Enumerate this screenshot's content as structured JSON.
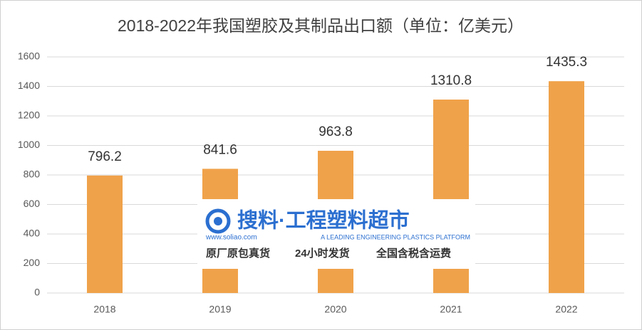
{
  "chart_data": {
    "type": "bar",
    "title": "2018-2022年我国塑胶及其制品出口额（单位：亿美元）",
    "categories": [
      "2018",
      "2019",
      "2020",
      "2021",
      "2022"
    ],
    "values": [
      796.2,
      841.6,
      963.8,
      1310.8,
      1435.3
    ],
    "color": "#f0a24a",
    "ylim": [
      0,
      1600
    ],
    "yticks": [
      0,
      200,
      400,
      600,
      800,
      1000,
      1200,
      1400,
      1600
    ],
    "grid": true
  },
  "watermark": {
    "brand": "搜料·工程塑料超市",
    "url": "www.soliao.com",
    "slogan": "A LEADING ENGINEERING PLASTICS PLATFORM",
    "taglines": [
      "原厂原包真货",
      "24小时发货",
      "全国含税含运费"
    ]
  }
}
